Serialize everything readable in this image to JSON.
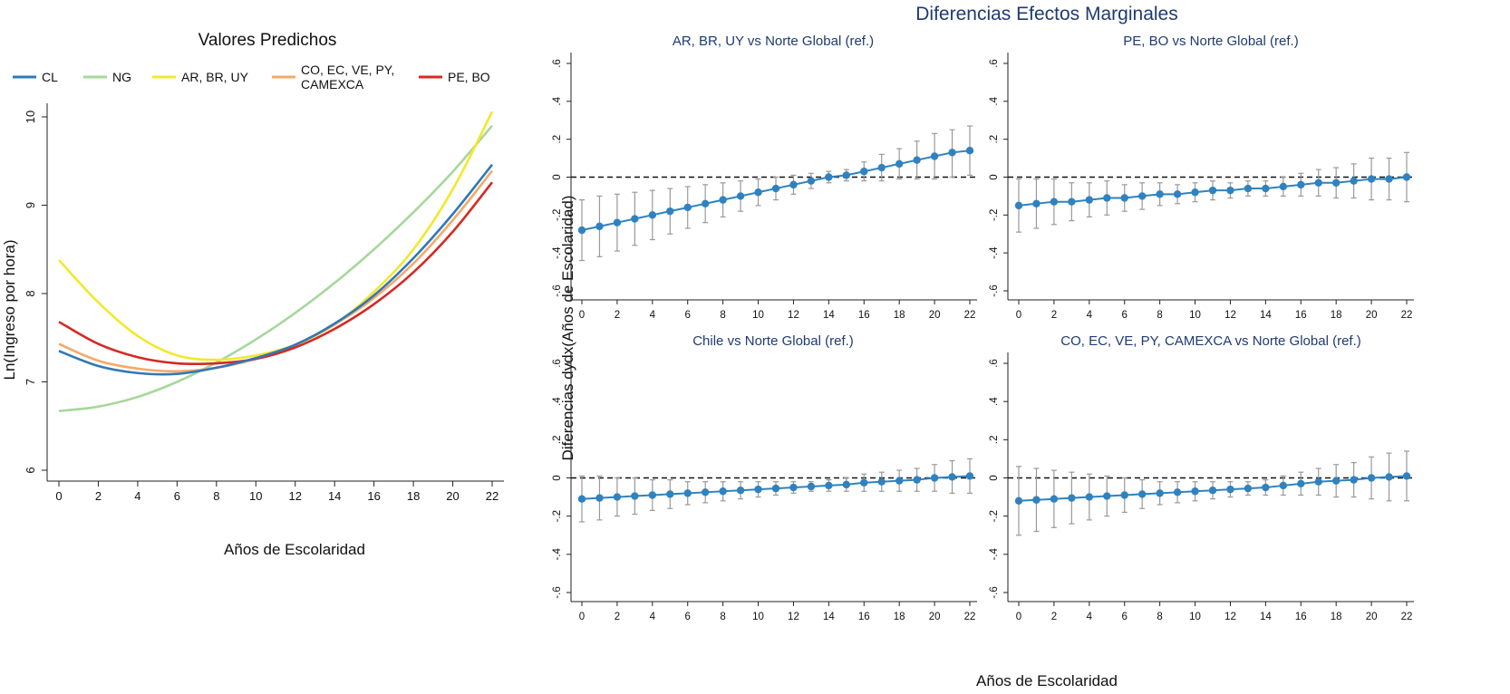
{
  "figure": {
    "left_title": "Valores Predichos",
    "right_title": "Diferencias Efectos Marginales"
  },
  "chart_data": [
    {
      "type": "line",
      "title": "Valores Predichos",
      "xlabel": "Años de Escolaridad",
      "ylabel": "Ln(Ingreso por hora)",
      "xlim": [
        0,
        22
      ],
      "ylim": [
        5.9,
        10.15
      ],
      "xticks": [
        0,
        2,
        4,
        6,
        8,
        10,
        12,
        14,
        16,
        18,
        20,
        22
      ],
      "yticks": [
        6,
        7,
        8,
        9,
        10
      ],
      "legend_position": "top",
      "grid": false,
      "x": [
        0,
        2,
        4,
        6,
        8,
        10,
        12,
        14,
        16,
        18,
        20,
        22
      ],
      "series": [
        {
          "name": "CL",
          "color": "#2f78b8",
          "values": [
            7.35,
            7.18,
            7.1,
            7.09,
            7.16,
            7.27,
            7.42,
            7.66,
            7.98,
            8.4,
            8.9,
            9.46
          ]
        },
        {
          "name": "NG",
          "color": "#a6d89b",
          "values": [
            6.67,
            6.72,
            6.83,
            7.0,
            7.22,
            7.48,
            7.78,
            8.12,
            8.5,
            8.92,
            9.38,
            9.9
          ]
        },
        {
          "name": "AR, BR, UY",
          "color": "#f2e82c",
          "values": [
            8.38,
            7.9,
            7.52,
            7.3,
            7.25,
            7.3,
            7.42,
            7.65,
            8.02,
            8.5,
            9.18,
            10.06
          ]
        },
        {
          "name": "CO, EC, VE, PY,\nCAMEXCA",
          "color": "#f6a86a",
          "values": [
            7.43,
            7.24,
            7.15,
            7.12,
            7.16,
            7.26,
            7.42,
            7.65,
            7.95,
            8.34,
            8.83,
            9.39
          ]
        },
        {
          "name": "PE, BO",
          "color": "#d42a23",
          "values": [
            7.68,
            7.43,
            7.28,
            7.21,
            7.21,
            7.26,
            7.39,
            7.6,
            7.88,
            8.24,
            8.7,
            9.26
          ]
        }
      ]
    },
    {
      "type": "scatter",
      "title": "AR, BR, UY vs Norte Global (ref.)",
      "xlabel": "",
      "ylabel": "",
      "xlim": [
        -0.5,
        22.5
      ],
      "ylim": [
        -0.65,
        0.65
      ],
      "xticks": [
        0,
        2,
        4,
        6,
        8,
        10,
        12,
        14,
        16,
        18,
        20,
        22
      ],
      "yticks": [
        -0.6,
        -0.4,
        -0.2,
        0,
        0.2,
        0.4,
        0.6
      ],
      "ytick_labels": [
        "-.6",
        "-.4",
        "-.2",
        "0",
        ".2",
        ".4",
        ".6"
      ],
      "reference_line": 0,
      "x": [
        0,
        1,
        2,
        3,
        4,
        5,
        6,
        7,
        8,
        9,
        10,
        11,
        12,
        13,
        14,
        15,
        16,
        17,
        18,
        19,
        20,
        21,
        22
      ],
      "estimates": [
        -0.28,
        -0.26,
        -0.24,
        -0.22,
        -0.2,
        -0.18,
        -0.16,
        -0.14,
        -0.12,
        -0.1,
        -0.08,
        -0.06,
        -0.04,
        -0.02,
        0.0,
        0.01,
        0.03,
        0.05,
        0.07,
        0.09,
        0.11,
        0.13,
        0.14
      ],
      "ci_low": [
        -0.44,
        -0.42,
        -0.39,
        -0.36,
        -0.33,
        -0.3,
        -0.27,
        -0.24,
        -0.21,
        -0.18,
        -0.15,
        -0.12,
        -0.09,
        -0.06,
        -0.03,
        -0.02,
        -0.02,
        -0.02,
        -0.01,
        -0.01,
        -0.01,
        0.0,
        0.01
      ],
      "ci_high": [
        -0.12,
        -0.1,
        -0.09,
        -0.08,
        -0.07,
        -0.06,
        -0.05,
        -0.04,
        -0.03,
        -0.02,
        -0.01,
        0.0,
        0.01,
        0.02,
        0.03,
        0.04,
        0.08,
        0.12,
        0.15,
        0.19,
        0.23,
        0.25,
        0.27
      ]
    },
    {
      "type": "scatter",
      "title": "PE, BO vs Norte Global (ref.)",
      "xlabel": "",
      "ylabel": "",
      "xlim": [
        -0.5,
        22.5
      ],
      "ylim": [
        -0.65,
        0.65
      ],
      "xticks": [
        0,
        2,
        4,
        6,
        8,
        10,
        12,
        14,
        16,
        18,
        20,
        22
      ],
      "yticks": [
        -0.6,
        -0.4,
        -0.2,
        0,
        0.2,
        0.4,
        0.6
      ],
      "ytick_labels": [
        "-.6",
        "-.4",
        "-.2",
        "0",
        ".2",
        ".4",
        ".6"
      ],
      "reference_line": 0,
      "x": [
        0,
        1,
        2,
        3,
        4,
        5,
        6,
        7,
        8,
        9,
        10,
        11,
        12,
        13,
        14,
        15,
        16,
        17,
        18,
        19,
        20,
        21,
        22
      ],
      "estimates": [
        -0.15,
        -0.14,
        -0.13,
        -0.13,
        -0.12,
        -0.11,
        -0.11,
        -0.1,
        -0.09,
        -0.09,
        -0.08,
        -0.07,
        -0.07,
        -0.06,
        -0.06,
        -0.05,
        -0.04,
        -0.03,
        -0.03,
        -0.02,
        -0.01,
        -0.01,
        0.0
      ],
      "ci_low": [
        -0.29,
        -0.27,
        -0.25,
        -0.23,
        -0.21,
        -0.2,
        -0.18,
        -0.17,
        -0.15,
        -0.14,
        -0.13,
        -0.12,
        -0.11,
        -0.1,
        -0.1,
        -0.1,
        -0.1,
        -0.1,
        -0.11,
        -0.11,
        -0.12,
        -0.12,
        -0.13
      ],
      "ci_high": [
        -0.01,
        -0.01,
        -0.01,
        -0.03,
        -0.03,
        -0.02,
        -0.04,
        -0.03,
        -0.03,
        -0.04,
        -0.03,
        -0.02,
        -0.03,
        -0.02,
        -0.02,
        0.0,
        0.02,
        0.04,
        0.05,
        0.07,
        0.1,
        0.1,
        0.13
      ]
    },
    {
      "type": "scatter",
      "title": "Chile vs Norte Global (ref.)",
      "xlabel": "",
      "ylabel": "",
      "xlim": [
        -0.5,
        22.5
      ],
      "ylim": [
        -0.65,
        0.65
      ],
      "xticks": [
        0,
        2,
        4,
        6,
        8,
        10,
        12,
        14,
        16,
        18,
        20,
        22
      ],
      "yticks": [
        -0.6,
        -0.4,
        -0.2,
        0,
        0.2,
        0.4,
        0.6
      ],
      "ytick_labels": [
        "-.6",
        "-.4",
        "-.2",
        "0",
        ".2",
        ".4",
        ".6"
      ],
      "reference_line": 0,
      "x": [
        0,
        1,
        2,
        3,
        4,
        5,
        6,
        7,
        8,
        9,
        10,
        11,
        12,
        13,
        14,
        15,
        16,
        17,
        18,
        19,
        20,
        21,
        22
      ],
      "estimates": [
        -0.11,
        -0.105,
        -0.1,
        -0.095,
        -0.09,
        -0.085,
        -0.08,
        -0.075,
        -0.07,
        -0.065,
        -0.06,
        -0.055,
        -0.05,
        -0.045,
        -0.04,
        -0.035,
        -0.025,
        -0.02,
        -0.015,
        -0.01,
        0.0,
        0.005,
        0.01
      ],
      "ci_low": [
        -0.23,
        -0.22,
        -0.2,
        -0.19,
        -0.17,
        -0.16,
        -0.14,
        -0.13,
        -0.12,
        -0.11,
        -0.1,
        -0.09,
        -0.08,
        -0.07,
        -0.07,
        -0.07,
        -0.07,
        -0.07,
        -0.07,
        -0.07,
        -0.07,
        -0.08,
        -0.08
      ],
      "ci_high": [
        0.01,
        0.01,
        0.0,
        0.0,
        -0.01,
        -0.01,
        -0.02,
        -0.02,
        -0.02,
        -0.02,
        -0.02,
        -0.02,
        -0.02,
        -0.02,
        -0.01,
        0.0,
        0.02,
        0.03,
        0.04,
        0.05,
        0.07,
        0.09,
        0.1
      ]
    },
    {
      "type": "scatter",
      "title": "CO, EC, VE, PY, CAMEXCA vs Norte Global (ref.)",
      "xlabel": "",
      "ylabel": "",
      "xlim": [
        -0.5,
        22.5
      ],
      "ylim": [
        -0.65,
        0.65
      ],
      "xticks": [
        0,
        2,
        4,
        6,
        8,
        10,
        12,
        14,
        16,
        18,
        20,
        22
      ],
      "yticks": [
        -0.6,
        -0.4,
        -0.2,
        0,
        0.2,
        0.4,
        0.6
      ],
      "ytick_labels": [
        "-.6",
        "-.4",
        "-.2",
        "0",
        ".2",
        ".4",
        ".6"
      ],
      "reference_line": 0,
      "x": [
        0,
        1,
        2,
        3,
        4,
        5,
        6,
        7,
        8,
        9,
        10,
        11,
        12,
        13,
        14,
        15,
        16,
        17,
        18,
        19,
        20,
        21,
        22
      ],
      "estimates": [
        -0.12,
        -0.115,
        -0.11,
        -0.105,
        -0.1,
        -0.095,
        -0.09,
        -0.085,
        -0.08,
        -0.075,
        -0.07,
        -0.065,
        -0.06,
        -0.055,
        -0.05,
        -0.04,
        -0.03,
        -0.02,
        -0.015,
        -0.01,
        0.0,
        0.005,
        0.01
      ],
      "ci_low": [
        -0.3,
        -0.28,
        -0.26,
        -0.24,
        -0.22,
        -0.2,
        -0.18,
        -0.16,
        -0.14,
        -0.13,
        -0.12,
        -0.11,
        -0.1,
        -0.09,
        -0.09,
        -0.09,
        -0.09,
        -0.09,
        -0.1,
        -0.1,
        -0.11,
        -0.12,
        -0.12
      ],
      "ci_high": [
        0.06,
        0.05,
        0.04,
        0.03,
        0.02,
        0.01,
        0.0,
        -0.01,
        -0.02,
        -0.02,
        -0.02,
        -0.02,
        -0.02,
        -0.02,
        -0.01,
        0.01,
        0.03,
        0.05,
        0.07,
        0.08,
        0.11,
        0.13,
        0.14
      ]
    }
  ],
  "shared_axes": {
    "right_ylabel": "Diferencias dydx(Años de Escolaridad)",
    "right_xlabel": "Años de Escolaridad"
  }
}
